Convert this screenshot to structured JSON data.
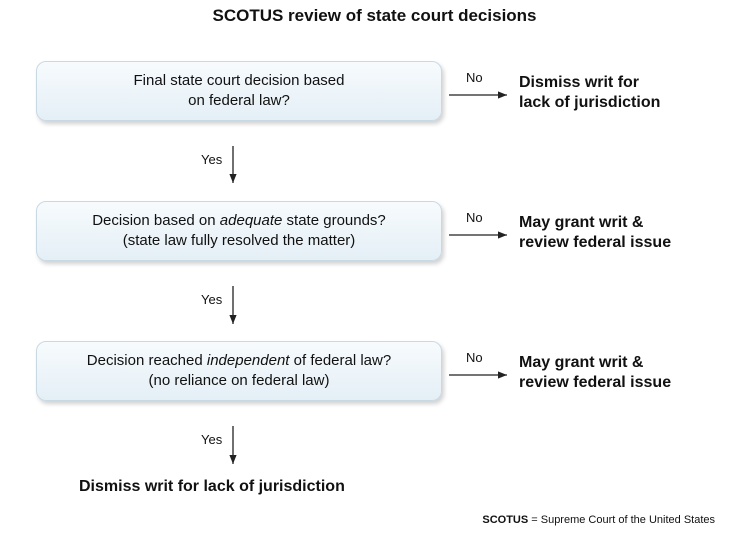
{
  "title": "SCOTUS review of state court decisions",
  "steps": [
    {
      "line1_pre": "Final state court decision based",
      "line1_em": "",
      "line1_post": "",
      "line2": "on federal law?",
      "no_label": "No",
      "yes_label": "Yes",
      "outcome_line1": "Dismiss writ for",
      "outcome_line2": "lack of jurisdiction"
    },
    {
      "line1_pre": "Decision based on ",
      "line1_em": "adequate",
      "line1_post": " state grounds?",
      "line2": "(state law fully resolved the matter)",
      "no_label": "No",
      "yes_label": "Yes",
      "outcome_line1": "May grant writ &",
      "outcome_line2": "review federal issue"
    },
    {
      "line1_pre": "Decision reached ",
      "line1_em": "independent",
      "line1_post": " of federal law?",
      "line2": "(no reliance on federal law)",
      "no_label": "No",
      "yes_label": "Yes",
      "outcome_line1": "May grant writ &",
      "outcome_line2": "review federal issue"
    }
  ],
  "final_outcome": "Dismiss writ for lack of jurisdiction",
  "footnote": {
    "abbr": "SCOTUS",
    "definition": " = Supreme Court of the United States"
  }
}
